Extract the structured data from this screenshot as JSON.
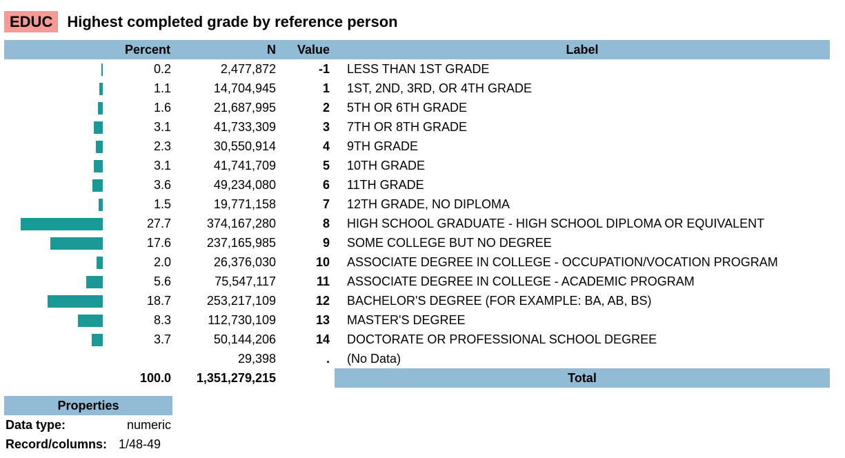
{
  "header": {
    "var_name": "EDUC",
    "title": "Highest completed grade by reference person"
  },
  "columns": {
    "percent": "Percent",
    "n": "N",
    "value": "Value",
    "label": "Label"
  },
  "rows": [
    {
      "percent": "0.2",
      "n": "2,477,872",
      "value": "-1",
      "label": "LESS THAN 1ST GRADE"
    },
    {
      "percent": "1.1",
      "n": "14,704,945",
      "value": "1",
      "label": "1ST, 2ND, 3RD, OR 4TH GRADE"
    },
    {
      "percent": "1.6",
      "n": "21,687,995",
      "value": "2",
      "label": "5TH OR 6TH GRADE"
    },
    {
      "percent": "3.1",
      "n": "41,733,309",
      "value": "3",
      "label": "7TH OR 8TH GRADE"
    },
    {
      "percent": "2.3",
      "n": "30,550,914",
      "value": "4",
      "label": "9TH GRADE"
    },
    {
      "percent": "3.1",
      "n": "41,741,709",
      "value": "5",
      "label": "10TH GRADE"
    },
    {
      "percent": "3.6",
      "n": "49,234,080",
      "value": "6",
      "label": "11TH GRADE"
    },
    {
      "percent": "1.5",
      "n": "19,771,158",
      "value": "7",
      "label": "12TH GRADE, NO DIPLOMA"
    },
    {
      "percent": "27.7",
      "n": "374,167,280",
      "value": "8",
      "label": "HIGH SCHOOL GRADUATE - HIGH SCHOOL DIPLOMA OR EQUIVALENT"
    },
    {
      "percent": "17.6",
      "n": "237,165,985",
      "value": "9",
      "label": "SOME COLLEGE BUT NO DEGREE"
    },
    {
      "percent": "2.0",
      "n": "26,376,030",
      "value": "10",
      "label": "ASSOCIATE DEGREE IN COLLEGE - OCCUPATION/VOCATION PROGRAM"
    },
    {
      "percent": "5.6",
      "n": "75,547,117",
      "value": "11",
      "label": "ASSOCIATE DEGREE IN COLLEGE - ACADEMIC PROGRAM"
    },
    {
      "percent": "18.7",
      "n": "253,217,109",
      "value": "12",
      "label": "BACHELOR'S DEGREE (FOR EXAMPLE: BA, AB, BS)"
    },
    {
      "percent": "8.3",
      "n": "112,730,109",
      "value": "13",
      "label": "MASTER'S DEGREE"
    },
    {
      "percent": "3.7",
      "n": "50,144,206",
      "value": "14",
      "label": "DOCTORATE OR PROFESSIONAL SCHOOL DEGREE"
    },
    {
      "percent": "",
      "n": "29,398",
      "value": ".",
      "label": "(No Data)"
    }
  ],
  "totals": {
    "percent": "100.0",
    "n": "1,351,279,215",
    "label": "Total"
  },
  "properties": {
    "heading": "Properties",
    "items": [
      {
        "key": "Data type:",
        "value": "numeric"
      },
      {
        "key": "Record/columns:",
        "value": "1/48-49"
      }
    ]
  },
  "colors": {
    "bar": "#1a9a96",
    "header_bg": "#92bcd6",
    "varname_bg": "#f59a95"
  }
}
